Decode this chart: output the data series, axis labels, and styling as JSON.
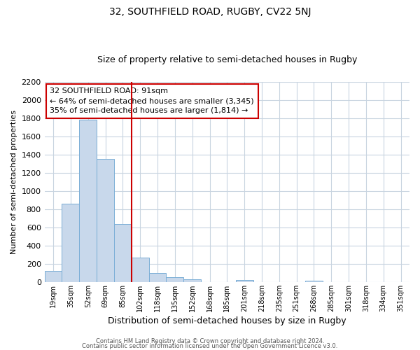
{
  "title": "32, SOUTHFIELD ROAD, RUGBY, CV22 5NJ",
  "subtitle": "Size of property relative to semi-detached houses in Rugby",
  "xlabel": "Distribution of semi-detached houses by size in Rugby",
  "ylabel": "Number of semi-detached properties",
  "bar_labels": [
    "19sqm",
    "35sqm",
    "52sqm",
    "69sqm",
    "85sqm",
    "102sqm",
    "118sqm",
    "135sqm",
    "152sqm",
    "168sqm",
    "185sqm",
    "201sqm",
    "218sqm",
    "235sqm",
    "251sqm",
    "268sqm",
    "285sqm",
    "301sqm",
    "318sqm",
    "334sqm",
    "351sqm"
  ],
  "bar_values": [
    120,
    860,
    1780,
    1350,
    640,
    270,
    100,
    55,
    30,
    0,
    0,
    20,
    0,
    0,
    0,
    15,
    0,
    0,
    0,
    0,
    0
  ],
  "bar_color": "#c8d8eb",
  "bar_edge_color": "#7aaed6",
  "vline_color": "#cc0000",
  "annotation_title": "32 SOUTHFIELD ROAD: 91sqm",
  "annotation_line1": "← 64% of semi-detached houses are smaller (3,345)",
  "annotation_line2": "35% of semi-detached houses are larger (1,814) →",
  "annotation_box_edge_color": "#cc0000",
  "ylim": [
    0,
    2200
  ],
  "yticks": [
    0,
    200,
    400,
    600,
    800,
    1000,
    1200,
    1400,
    1600,
    1800,
    2000,
    2200
  ],
  "footer1": "Contains HM Land Registry data © Crown copyright and database right 2024.",
  "footer2": "Contains public sector information licensed under the Open Government Licence v3.0.",
  "bg_color": "#ffffff",
  "grid_color": "#c8d4e0",
  "title_fontsize": 10,
  "subtitle_fontsize": 9,
  "xlabel_fontsize": 9,
  "ylabel_fontsize": 8,
  "tick_fontsize": 8,
  "xtick_fontsize": 7,
  "ann_fontsize": 8,
  "footer_fontsize": 6
}
